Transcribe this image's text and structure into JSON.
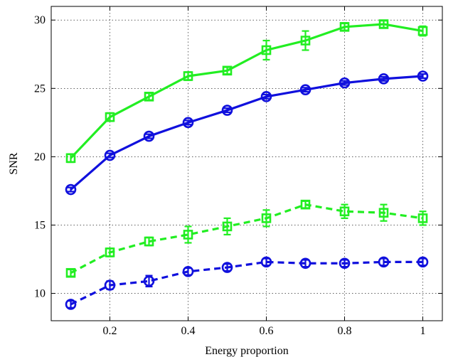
{
  "chart_data": {
    "type": "line",
    "title": "",
    "xlabel": "Energy proportion",
    "ylabel": "SNR",
    "xlim": [
      0.05,
      1.05
    ],
    "ylim": [
      8,
      31
    ],
    "xticks": [
      0.2,
      0.4,
      0.6,
      0.8,
      1
    ],
    "xtick_labels": [
      "0.2",
      "0.4",
      "0.6",
      "0.8",
      "1"
    ],
    "yticks": [
      10,
      15,
      20,
      25,
      30
    ],
    "ytick_labels": [
      "10",
      "15",
      "20",
      "25",
      "30"
    ],
    "grid": true,
    "legend": "none",
    "x": [
      0.1,
      0.2,
      0.3,
      0.4,
      0.5,
      0.6,
      0.7,
      0.8,
      0.9,
      1.0
    ],
    "series": [
      {
        "color": "#22ee22",
        "line_style": "solid",
        "marker": "square",
        "values": [
          19.9,
          22.9,
          24.4,
          25.9,
          26.3,
          27.8,
          28.5,
          29.5,
          29.7,
          29.2
        ],
        "errors": [
          0.3,
          0.3,
          0.25,
          0.3,
          0.25,
          0.7,
          0.7,
          0.25,
          0.25,
          0.35
        ]
      },
      {
        "color": "#1010dd",
        "line_style": "solid",
        "marker": "circle",
        "values": [
          17.6,
          20.1,
          21.5,
          22.5,
          23.4,
          24.4,
          24.9,
          25.4,
          25.7,
          25.9
        ],
        "errors": [
          0.15,
          0.15,
          0.15,
          0.15,
          0.15,
          0.15,
          0.15,
          0.15,
          0.15,
          0.15
        ]
      },
      {
        "color": "#22ee22",
        "line_style": "dashed",
        "marker": "square",
        "values": [
          11.5,
          13.0,
          13.8,
          14.3,
          14.9,
          15.5,
          16.5,
          16.0,
          15.9,
          15.5
        ],
        "errors": [
          0.25,
          0.3,
          0.3,
          0.6,
          0.6,
          0.6,
          0.25,
          0.5,
          0.6,
          0.5
        ]
      },
      {
        "color": "#1010dd",
        "line_style": "dashed",
        "marker": "circle",
        "values": [
          9.2,
          10.6,
          10.9,
          11.6,
          11.9,
          12.3,
          12.2,
          12.2,
          12.3,
          12.3
        ],
        "errors": [
          0.25,
          0.3,
          0.4,
          0.25,
          0.25,
          0.25,
          0.25,
          0.25,
          0.25,
          0.25
        ]
      }
    ]
  }
}
